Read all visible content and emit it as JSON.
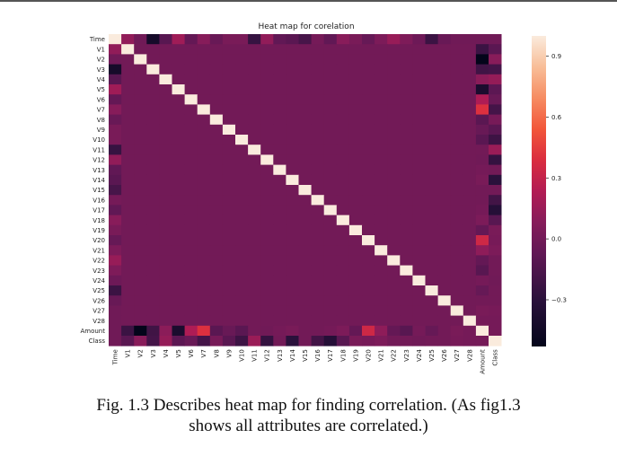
{
  "chart_data": {
    "type": "heatmap",
    "title": "Heat map for corelation",
    "rows": [
      "Time",
      "V1",
      "V2",
      "V3",
      "V4",
      "V5",
      "V6",
      "V7",
      "V8",
      "V9",
      "V10",
      "V11",
      "V12",
      "V13",
      "V14",
      "V15",
      "V16",
      "V17",
      "V18",
      "V19",
      "V20",
      "V21",
      "V22",
      "V23",
      "V24",
      "V25",
      "V26",
      "V27",
      "V28",
      "Amount",
      "Class"
    ],
    "columns": [
      "Time",
      "V1",
      "V2",
      "V3",
      "V4",
      "V5",
      "V6",
      "V7",
      "V8",
      "V9",
      "V10",
      "V11",
      "V12",
      "V13",
      "V14",
      "V15",
      "V16",
      "V17",
      "V18",
      "V19",
      "V20",
      "V21",
      "V22",
      "V23",
      "V24",
      "V25",
      "V26",
      "V27",
      "V28",
      "Amount",
      "Class"
    ],
    "diagonal": 1.0,
    "background": 0.0,
    "time_row": [
      1.0,
      0.12,
      -0.01,
      -0.42,
      -0.11,
      0.17,
      -0.06,
      0.08,
      -0.04,
      0.03,
      0.03,
      -0.25,
      0.12,
      -0.07,
      -0.1,
      -0.18,
      0.01,
      -0.07,
      0.09,
      0.03,
      -0.05,
      0.04,
      0.14,
      0.05,
      -0.02,
      -0.23,
      -0.04,
      -0.01,
      -0.01,
      -0.01,
      -0.01
    ],
    "amount_row": [
      -0.01,
      -0.23,
      -0.53,
      -0.21,
      0.1,
      -0.39,
      0.22,
      0.4,
      -0.1,
      -0.04,
      -0.1,
      0.0,
      -0.01,
      0.01,
      0.03,
      -0.0,
      -0.0,
      0.01,
      0.04,
      -0.06,
      0.34,
      0.11,
      -0.06,
      -0.11,
      0.01,
      -0.05,
      -0.0,
      0.03,
      0.01,
      1.0,
      0.01
    ],
    "class_row": [
      -0.01,
      -0.1,
      0.09,
      -0.19,
      0.13,
      -0.09,
      -0.04,
      -0.19,
      0.02,
      -0.1,
      -0.22,
      0.15,
      -0.26,
      -0.0,
      -0.3,
      -0.0,
      -0.2,
      -0.33,
      -0.11,
      0.03,
      0.02,
      0.04,
      0.0,
      -0.0,
      -0.01,
      0.0,
      0.0,
      0.02,
      0.01,
      0.01,
      1.0
    ],
    "colorbar": {
      "min": -0.53,
      "max": 1.0,
      "ticks": [
        -0.3,
        0.0,
        0.3,
        0.6,
        0.9
      ],
      "tick_labels": [
        "−0.3",
        "0.0",
        "0.3",
        "0.6",
        "0.9"
      ]
    },
    "colormap": "rocket"
  },
  "caption": {
    "line1": "Fig. 1.3 Describes heat map for finding correlation. (As fig1.3",
    "line2": "shows all attributes are correlated.)"
  }
}
